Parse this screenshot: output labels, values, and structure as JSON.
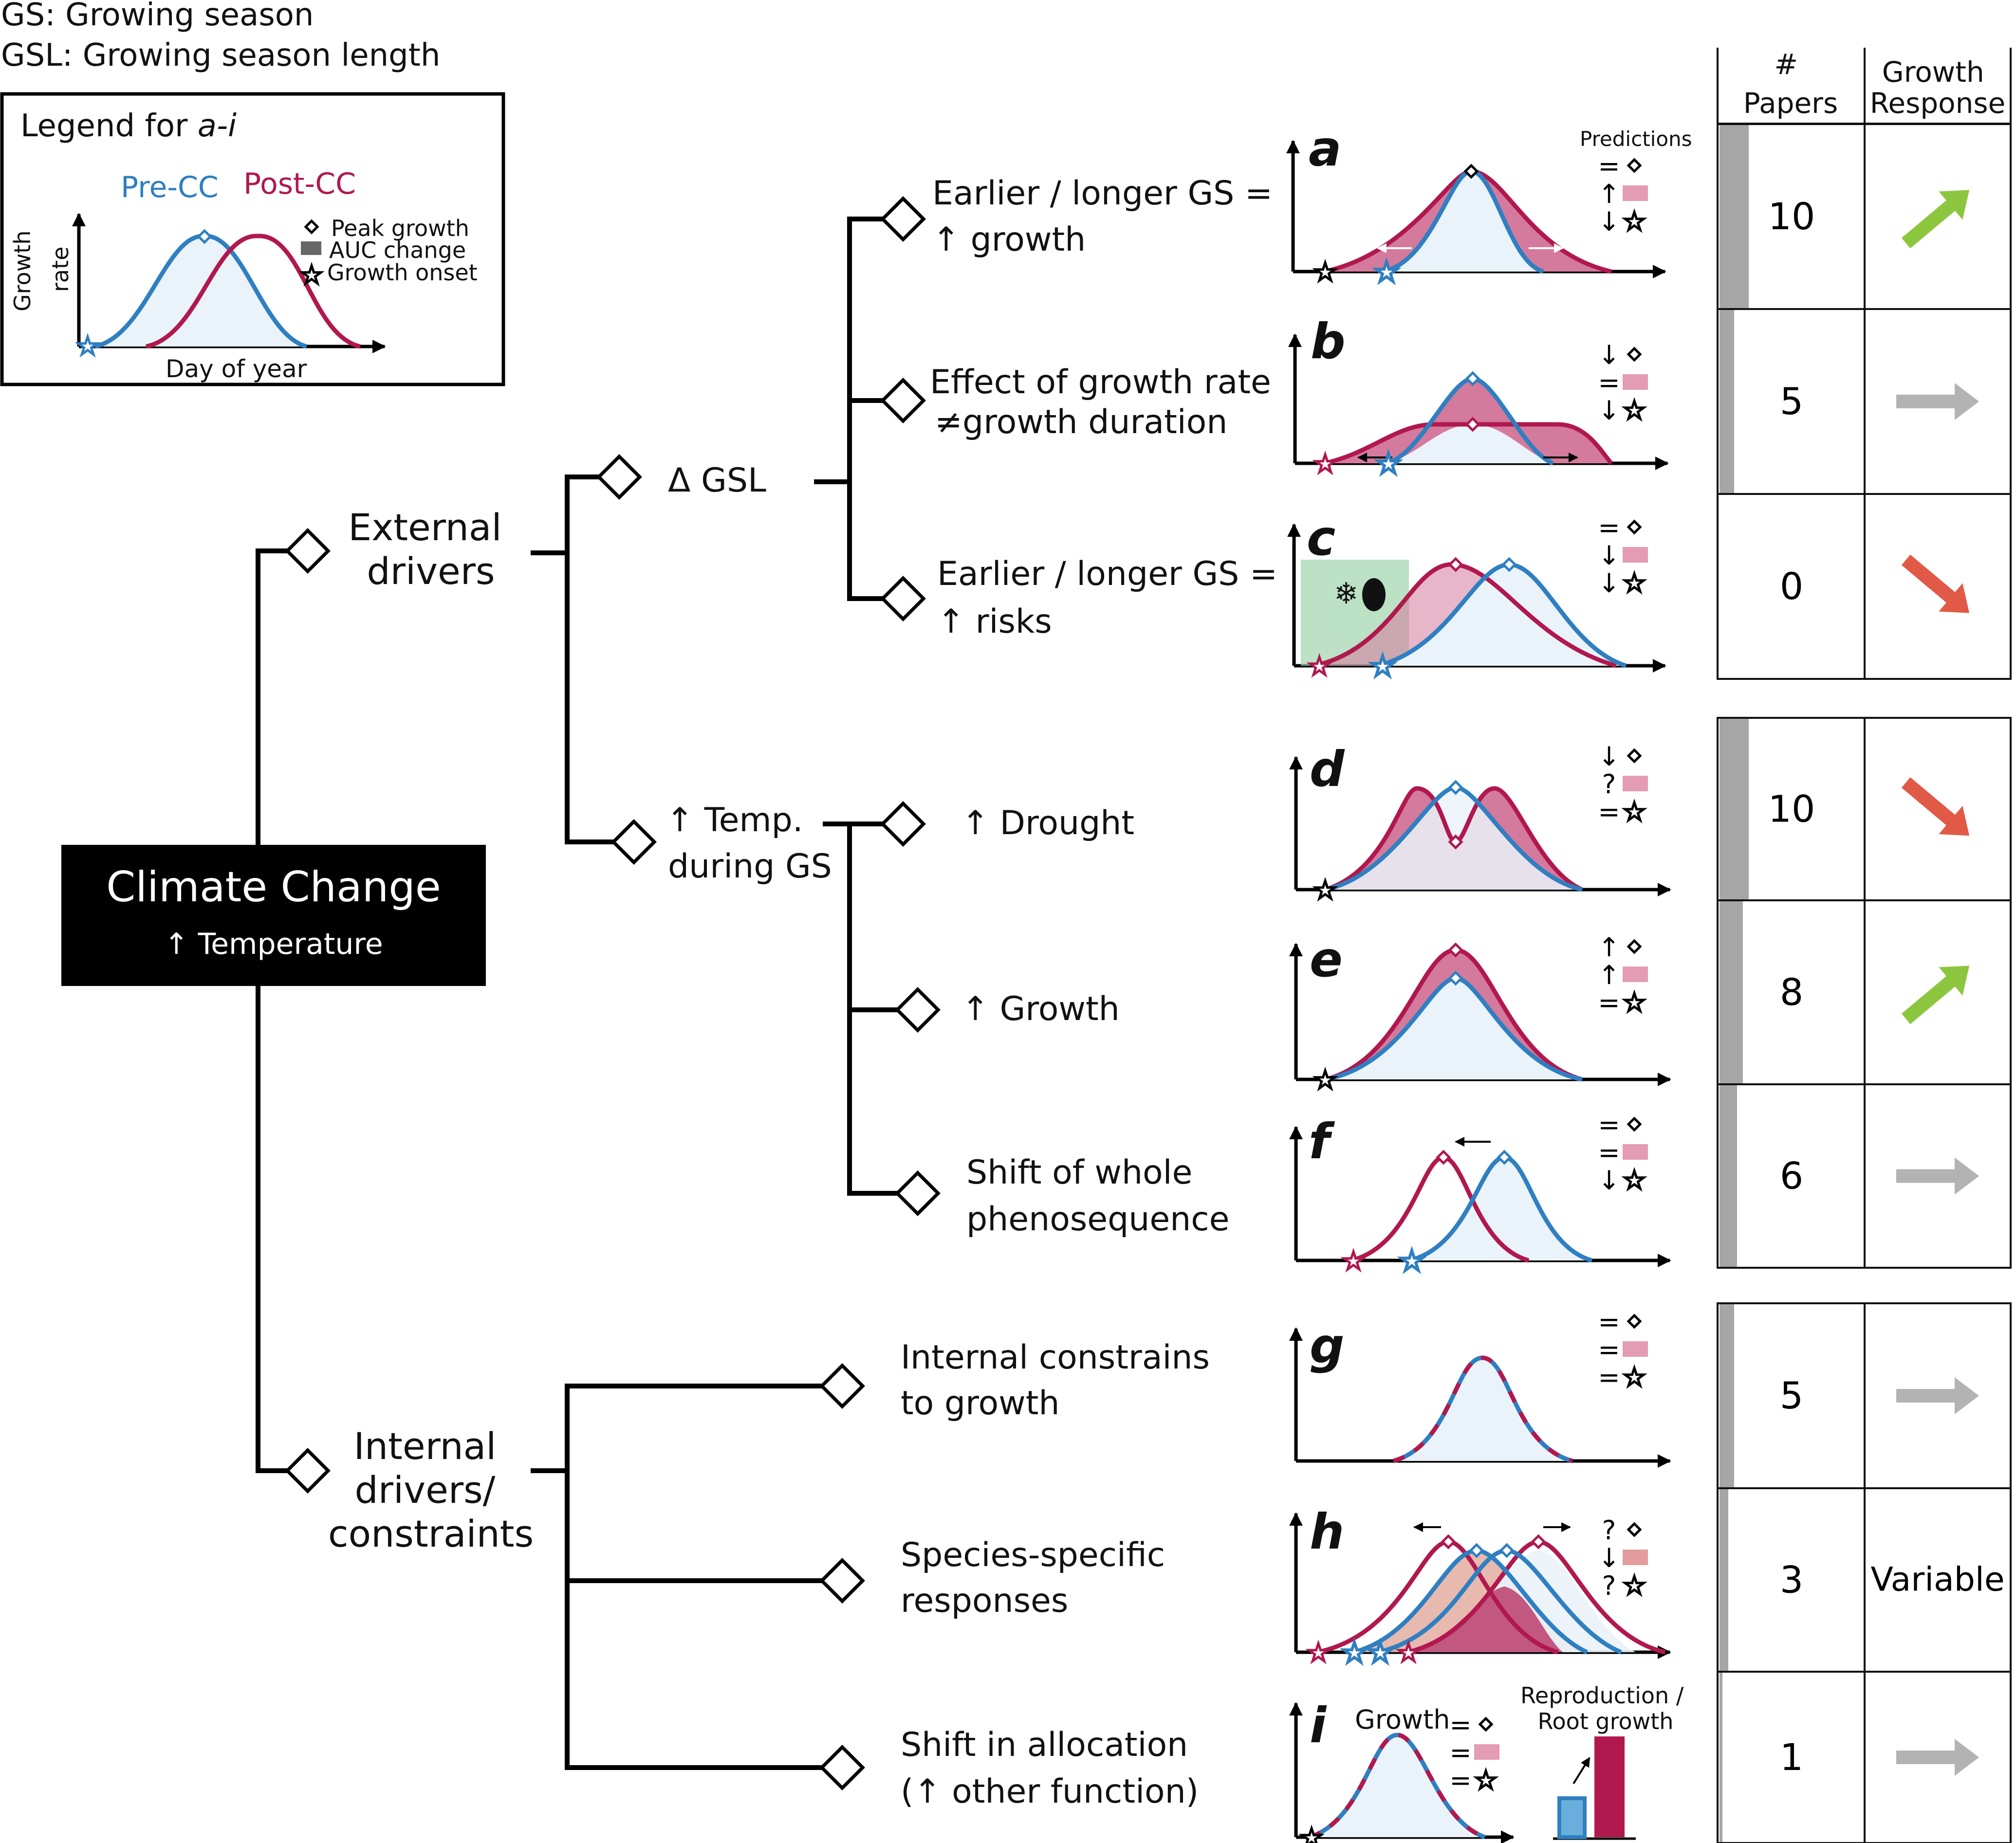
{
  "header": {
    "gs_def": "GS: Growing season",
    "gsl_def": "GSL: Growing season length"
  },
  "legend": {
    "title": "Legend for ",
    "title_range": "a-i",
    "pre_cc": "Pre-CC",
    "post_cc": "Post-CC",
    "peak": "Peak growth",
    "auc": "AUC change",
    "onset": "Growth onset",
    "ylabel_1": "Growth",
    "ylabel_2": "rate",
    "xlabel": "Day of year",
    "colors": {
      "pre_cc": "#2f7fc1",
      "post_cc": "#b0184e",
      "auc": "#e39cb3"
    }
  },
  "root": {
    "title": "Climate Change",
    "subtitle": "↑ Temperature"
  },
  "tree": {
    "external": [
      "External",
      "drivers"
    ],
    "internal": [
      "Internal",
      "drivers/",
      "constraints"
    ],
    "delta_gsl": "Δ GSL",
    "temp": [
      "↑ Temp.",
      "during GS"
    ],
    "a": [
      "Earlier / longer GS =",
      "↑ growth"
    ],
    "b": [
      "Effect of growth rate",
      "≠growth duration"
    ],
    "c": [
      "Earlier / longer GS =",
      "↑  risks"
    ],
    "d": "↑ Drought",
    "e": "↑ Growth",
    "f": [
      "Shift of whole",
      "phenosequence"
    ],
    "g": [
      "Internal constrains",
      "to growth"
    ],
    "h": [
      "Species-specific",
      "responses"
    ],
    "i": [
      "Shift in allocation",
      "(↑ other function)"
    ]
  },
  "panels": {
    "letters": [
      "a",
      "b",
      "c",
      "d",
      "e",
      "f",
      "g",
      "h",
      "i"
    ],
    "predictions_label": "Predictions",
    "predictions": {
      "a": [
        "=",
        "↑",
        "↓"
      ],
      "b": [
        "↓",
        "=",
        "↓"
      ],
      "c": [
        "=",
        "↓",
        "↓"
      ],
      "d": [
        "↓",
        "?",
        "="
      ],
      "e": [
        "↑",
        "↑",
        "="
      ],
      "f": [
        "=",
        "=",
        "↓"
      ],
      "g": [
        "=",
        "=",
        "="
      ],
      "h": [
        "?",
        "↓",
        "?"
      ],
      "i": [
        "=",
        "=",
        "="
      ]
    },
    "i_growth": "Growth",
    "i_repro": [
      "Reproduction /",
      "Root growth"
    ]
  },
  "table": {
    "header_papers": [
      "#",
      "Papers"
    ],
    "header_response": [
      "Growth",
      "Response"
    ],
    "rows": [
      {
        "papers": "10",
        "response": "up"
      },
      {
        "papers": "5",
        "response": "flat"
      },
      {
        "papers": "0",
        "response": "down"
      },
      {
        "papers": "10",
        "response": "down"
      },
      {
        "papers": "8",
        "response": "up"
      },
      {
        "papers": "6",
        "response": "flat"
      },
      {
        "papers": "5",
        "response": "flat"
      },
      {
        "papers": "3",
        "response": "Variable"
      },
      {
        "papers": "1",
        "response": "flat"
      }
    ],
    "arrow_colors": {
      "up": "#8cc63f",
      "flat": "#b3b3b3",
      "down": "#e05a47"
    }
  }
}
